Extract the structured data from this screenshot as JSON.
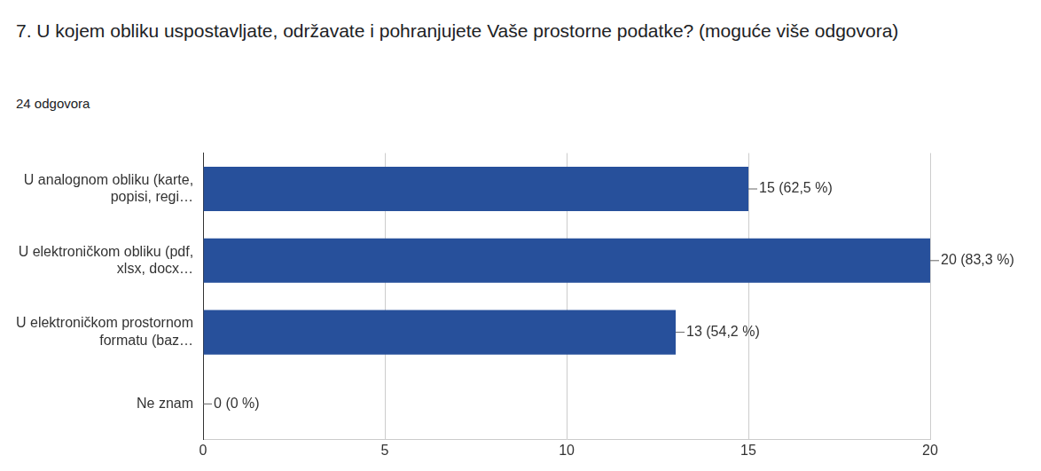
{
  "chart_data": {
    "type": "bar",
    "orientation": "horizontal",
    "title": "7. U kojem obliku uspostavljate, održavate i pohranjujete Vaše prostorne podatke? (moguće više odgovora)",
    "subtitle": "24 odgovora",
    "categories": [
      "U analognom obliku (karte, popisi, regi…",
      "U elektroničkom obliku (pdf, xlsx, docx…",
      "U elektroničkom prostornom formatu (baz…",
      "Ne znam"
    ],
    "values": [
      15,
      20,
      13,
      0
    ],
    "value_labels": [
      "15 (62,5 %)",
      "20 (83,3 %)",
      "13 (54,2 %)",
      "0 (0 %)"
    ],
    "color": "#27509b",
    "xlim": [
      0,
      20
    ],
    "xticks": [
      0,
      5,
      10,
      15,
      20
    ],
    "grid": true,
    "data_labels": true
  }
}
